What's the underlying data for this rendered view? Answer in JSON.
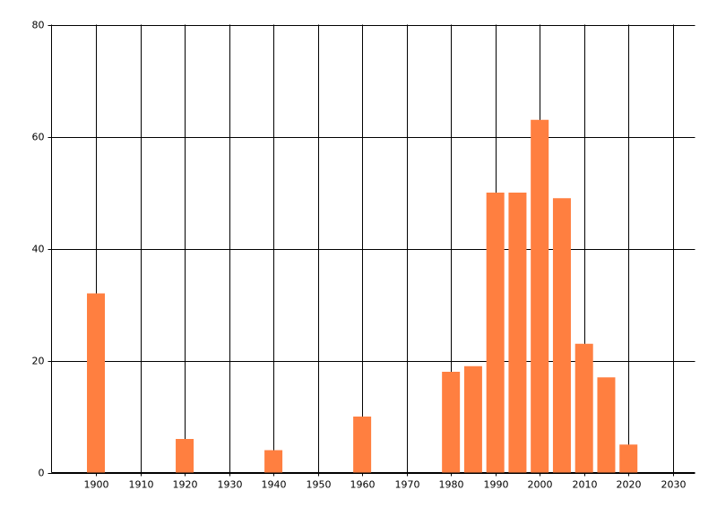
{
  "chart_data": {
    "type": "bar",
    "x": [
      1900,
      1920,
      1940,
      1960,
      1980,
      1985,
      1990,
      1995,
      2000,
      2005,
      2010,
      2015,
      2020
    ],
    "values": [
      32,
      6,
      4,
      10,
      18,
      19,
      50,
      50,
      63,
      49,
      23,
      17,
      5
    ],
    "color": "#ff7f40",
    "xlim": [
      1890,
      2035
    ],
    "xticks": [
      1900,
      1910,
      1920,
      1930,
      1940,
      1950,
      1960,
      1970,
      1980,
      1990,
      2000,
      2010,
      2020,
      2030
    ],
    "ylim": [
      0,
      80
    ],
    "yticks": [
      0,
      20,
      40,
      60,
      80
    ],
    "grid": true
  }
}
